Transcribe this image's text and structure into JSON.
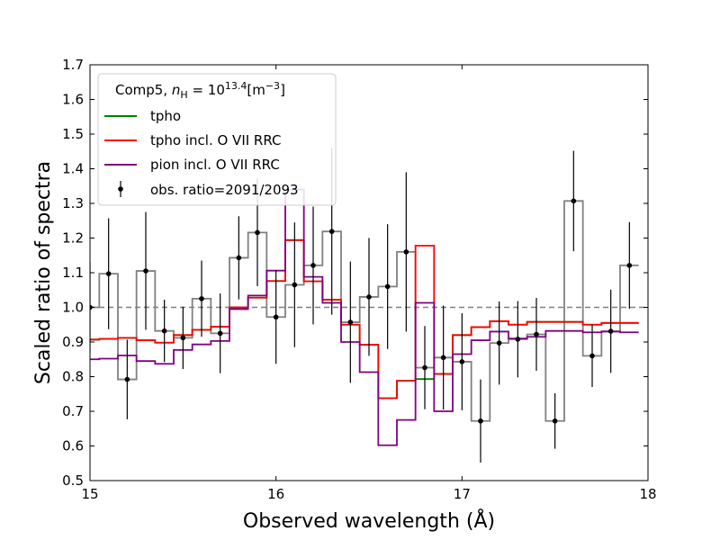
{
  "chart_data": {
    "type": "line",
    "drawstyle": "steps-mid",
    "xlabel": "Observed wavelength (Å)",
    "ylabel": "Scaled ratio of spectra",
    "xlim": [
      15,
      18
    ],
    "ylim": [
      0.5,
      1.7
    ],
    "x_ticks": [
      15,
      16,
      17,
      18
    ],
    "y_ticks": [
      0.5,
      0.6,
      0.7,
      0.8,
      0.9,
      1.0,
      1.1,
      1.2,
      1.3,
      1.4,
      1.5,
      1.6,
      1.7
    ],
    "x_tick_labels": [
      "15",
      "16",
      "17",
      "18"
    ],
    "y_tick_labels": [
      "0.5",
      "0.6",
      "0.7",
      "0.8",
      "0.9",
      "1.0",
      "1.1",
      "1.2",
      "1.3",
      "1.4",
      "1.5",
      "1.6",
      "1.7"
    ],
    "reference_line": {
      "y": 1.0,
      "style": "dashed",
      "color": "#808080"
    },
    "legend": {
      "placement": "upper-left",
      "title_prefix": "Comp5, ",
      "title_n": "n",
      "title_n_sub": "H",
      "title_eq": " = 10",
      "title_exp": "13.4",
      "title_unit": "[m",
      "title_unit_exp": "−3",
      "title_close": "]",
      "entries": [
        "tpho",
        "tpho incl. O VII RRC",
        "pion incl. O VII RRC",
        "obs. ratio=2091/2093"
      ]
    },
    "x": [
      15.0,
      15.1,
      15.2,
      15.3,
      15.4,
      15.5,
      15.6,
      15.7,
      15.8,
      15.9,
      16.0,
      16.1,
      16.2,
      16.3,
      16.4,
      16.5,
      16.6,
      16.7,
      16.8,
      16.9,
      17.0,
      17.1,
      17.2,
      17.3,
      17.4,
      17.5,
      17.6,
      17.7,
      17.8,
      17.9
    ],
    "series": [
      {
        "name": "obs. ratio=2091/2093",
        "kind": "errorbar-step",
        "color": "#000000",
        "step_color": "#808080",
        "values": [
          1.0,
          1.097,
          0.792,
          1.105,
          0.932,
          0.912,
          1.025,
          0.925,
          1.143,
          1.216,
          0.972,
          1.065,
          1.121,
          1.219,
          0.957,
          1.03,
          1.06,
          1.16,
          0.826,
          0.855,
          0.843,
          0.672,
          0.897,
          0.908,
          0.922,
          0.672,
          1.307,
          0.86,
          0.931,
          1.121
        ],
        "yerr": [
          0.13,
          0.16,
          0.115,
          0.17,
          0.09,
          0.09,
          0.11,
          0.115,
          0.12,
          0.155,
          0.135,
          0.18,
          0.17,
          0.24,
          0.175,
          0.17,
          0.18,
          0.23,
          0.12,
          0.15,
          0.14,
          0.12,
          0.12,
          0.11,
          0.105,
          0.08,
          0.145,
          0.09,
          0.12,
          0.125
        ]
      },
      {
        "name": "tpho",
        "kind": "step",
        "color": "#008000",
        "values": [
          0.907,
          0.909,
          0.912,
          0.905,
          0.898,
          0.92,
          0.935,
          0.944,
          1.0,
          1.028,
          1.076,
          1.194,
          1.075,
          1.022,
          0.95,
          0.892,
          0.738,
          0.788,
          0.793,
          0.808,
          0.92,
          0.943,
          0.96,
          0.95,
          0.958,
          0.958,
          0.958,
          0.95,
          0.955,
          0.955
        ]
      },
      {
        "name": "tpho incl. O VII RRC",
        "kind": "step",
        "color": "#ff0000",
        "values": [
          0.907,
          0.909,
          0.912,
          0.905,
          0.898,
          0.92,
          0.935,
          0.944,
          1.0,
          1.028,
          1.076,
          1.194,
          1.075,
          1.022,
          0.95,
          0.892,
          0.738,
          0.788,
          1.178,
          0.808,
          0.92,
          0.943,
          0.96,
          0.95,
          0.958,
          0.958,
          0.958,
          0.95,
          0.955,
          0.955
        ]
      },
      {
        "name": "pion incl. O VII RRC",
        "kind": "step",
        "color": "#800080",
        "values": [
          0.85,
          0.852,
          0.861,
          0.845,
          0.837,
          0.877,
          0.893,
          0.903,
          0.995,
          1.034,
          1.106,
          1.34,
          1.088,
          1.013,
          0.9,
          0.813,
          0.602,
          0.675,
          1.013,
          0.7,
          0.865,
          0.905,
          0.93,
          0.91,
          0.915,
          0.932,
          0.932,
          0.928,
          0.93,
          0.928
        ]
      }
    ]
  }
}
